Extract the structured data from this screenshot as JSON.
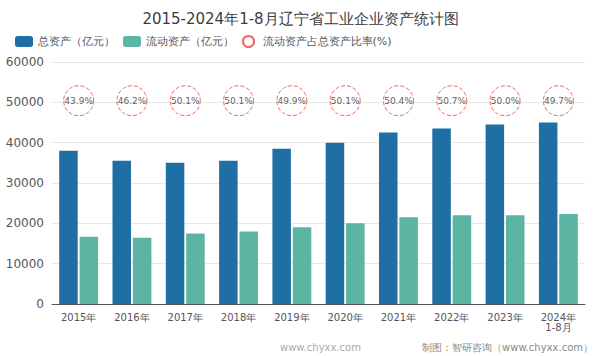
{
  "chart_data": {
    "type": "bar",
    "title": "2015-2024年1-8月辽宁省工业企业资产统计图",
    "categories": [
      "2015年",
      "2016年",
      "2017年",
      "2018年",
      "2019年",
      "2020年",
      "2021年",
      "2022年",
      "2023年",
      "2024年\n1-8月"
    ],
    "series": [
      {
        "name": "总资产（亿元）",
        "color": "#1F6FA5",
        "values": [
          38000,
          35500,
          35000,
          35500,
          38500,
          40000,
          42500,
          43500,
          44500,
          45000
        ]
      },
      {
        "name": "流动资产（亿元）",
        "color": "#5BB5A2",
        "values": [
          16700,
          16400,
          17500,
          18000,
          19000,
          20000,
          21500,
          22000,
          22000,
          22300
        ]
      },
      {
        "name": "流动资产占总资产比率(%)",
        "type": "scatter",
        "marker": "circle",
        "line_style": "dashed",
        "color": "#E84040",
        "values": [
          43.9,
          46.2,
          50.1,
          50.1,
          49.9,
          50.1,
          50.4,
          50.7,
          50.0,
          49.7
        ],
        "value_labels": [
          "43.9%",
          "46.2%",
          "50.1%",
          "50.1%",
          "49.9%",
          "50.1%",
          "50.4%",
          "50.7%",
          "50.0%",
          "49.7%"
        ],
        "data_labels": true
      }
    ],
    "ylim": [
      0,
      60000
    ],
    "yticks": [
      0,
      10000,
      20000,
      30000,
      40000,
      50000,
      60000
    ],
    "grid": true,
    "legend": "upper-left",
    "annotations": [
      "www.chyxx.com",
      "制图：智研咨询（www.chyxx.com）"
    ]
  }
}
